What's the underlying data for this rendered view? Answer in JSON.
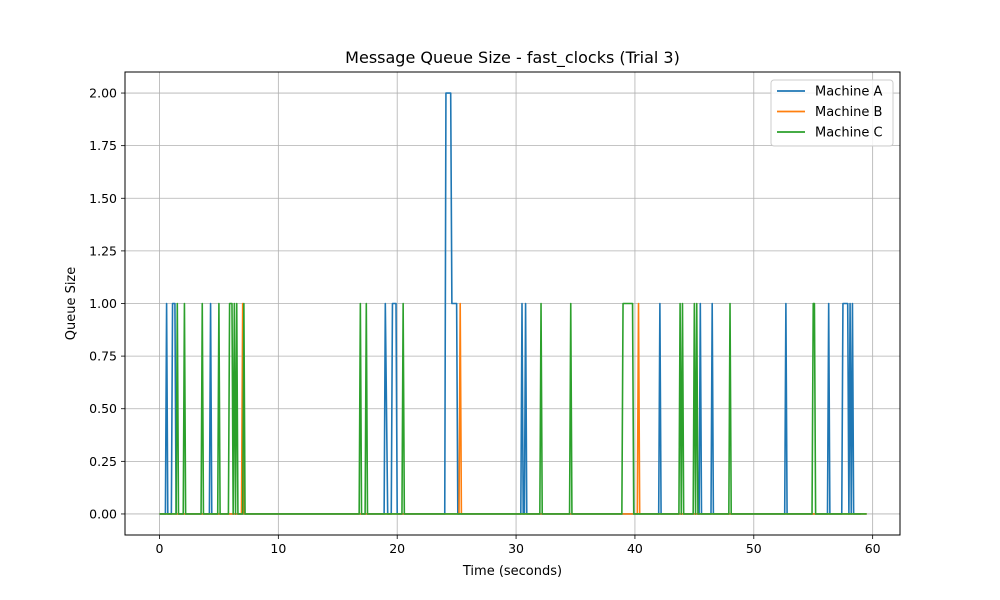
{
  "chart_data": {
    "type": "line",
    "title": "Message Queue Size - fast_clocks (Trial 3)",
    "xlabel": "Time (seconds)",
    "ylabel": "Queue Size",
    "xlim": [
      -2.9,
      62.3
    ],
    "ylim": [
      -0.1,
      2.1
    ],
    "xticks": [
      0,
      10,
      20,
      30,
      40,
      50,
      60
    ],
    "yticks": [
      "0.00",
      "0.25",
      "0.50",
      "0.75",
      "1.00",
      "1.25",
      "1.50",
      "1.75",
      "2.00"
    ],
    "grid": true,
    "legend_position": "top-right",
    "series": [
      {
        "name": "Machine A",
        "color": "#1f77b4",
        "x": [
          0,
          0.5,
          0.6,
          0.7,
          1.0,
          1.1,
          1.3,
          1.4,
          4.2,
          4.3,
          4.4,
          18.9,
          19.0,
          19.2,
          19.5,
          19.6,
          19.9,
          20.0,
          24.0,
          24.1,
          24.5,
          24.6,
          25.0,
          25.1,
          30.4,
          30.5,
          30.6,
          30.7,
          30.8,
          30.9,
          42.0,
          42.1,
          42.2,
          45.4,
          45.5,
          45.6,
          46.4,
          46.5,
          46.6,
          52.6,
          52.7,
          52.8,
          56.2,
          56.3,
          56.4,
          57.4,
          57.5,
          57.9,
          58.0,
          58.1,
          58.2,
          58.3,
          58.4,
          59.0
        ],
        "y": [
          0,
          0,
          1,
          0,
          0,
          1,
          1,
          0,
          0,
          1,
          0,
          0,
          1,
          0,
          0,
          1,
          1,
          0,
          0,
          2,
          2,
          1,
          1,
          0,
          0,
          1,
          0,
          0,
          1,
          0,
          0,
          1,
          0,
          0,
          1,
          0,
          0,
          1,
          0,
          0,
          1,
          0,
          0,
          1,
          0,
          0,
          1,
          1,
          0,
          1,
          0,
          1,
          0,
          0
        ]
      },
      {
        "name": "Machine B",
        "color": "#ff7f0e",
        "x": [
          0,
          6.9,
          7.0,
          7.1,
          25.2,
          25.3,
          25.4,
          40.2,
          40.3,
          40.4,
          59.5
        ],
        "y": [
          0,
          0,
          1,
          0,
          0,
          1,
          0,
          0,
          1,
          0,
          0
        ]
      },
      {
        "name": "Machine C",
        "color": "#2ca02c",
        "x": [
          0,
          1.4,
          1.5,
          1.6,
          2.0,
          2.1,
          2.2,
          3.5,
          3.6,
          3.7,
          4.9,
          5.0,
          5.1,
          5.8,
          5.9,
          6.1,
          6.2,
          6.3,
          6.4,
          6.5,
          6.6,
          7.0,
          7.1,
          7.2,
          16.8,
          16.9,
          17.0,
          17.3,
          17.4,
          17.5,
          20.4,
          20.5,
          20.6,
          32.0,
          32.1,
          32.2,
          34.5,
          34.6,
          34.7,
          38.9,
          39.0,
          39.8,
          39.9,
          43.7,
          43.8,
          43.9,
          44.0,
          44.1,
          44.2,
          44.9,
          45.0,
          45.1,
          45.2,
          45.3,
          45.4,
          47.9,
          48.0,
          48.1,
          54.9,
          55.0,
          55.1,
          55.2,
          59.5
        ],
        "y": [
          0,
          0,
          1,
          0,
          0,
          1,
          0,
          0,
          1,
          0,
          0,
          1,
          0,
          0,
          1,
          1,
          0,
          1,
          0,
          1,
          0,
          0,
          1,
          0,
          0,
          1,
          0,
          0,
          1,
          0,
          0,
          1,
          0,
          0,
          1,
          0,
          0,
          1,
          0,
          0,
          1,
          1,
          0,
          0,
          1,
          0,
          1,
          0,
          0,
          0,
          1,
          0,
          1,
          0,
          0,
          0,
          1,
          0,
          0,
          1,
          1,
          0,
          0
        ]
      }
    ]
  }
}
